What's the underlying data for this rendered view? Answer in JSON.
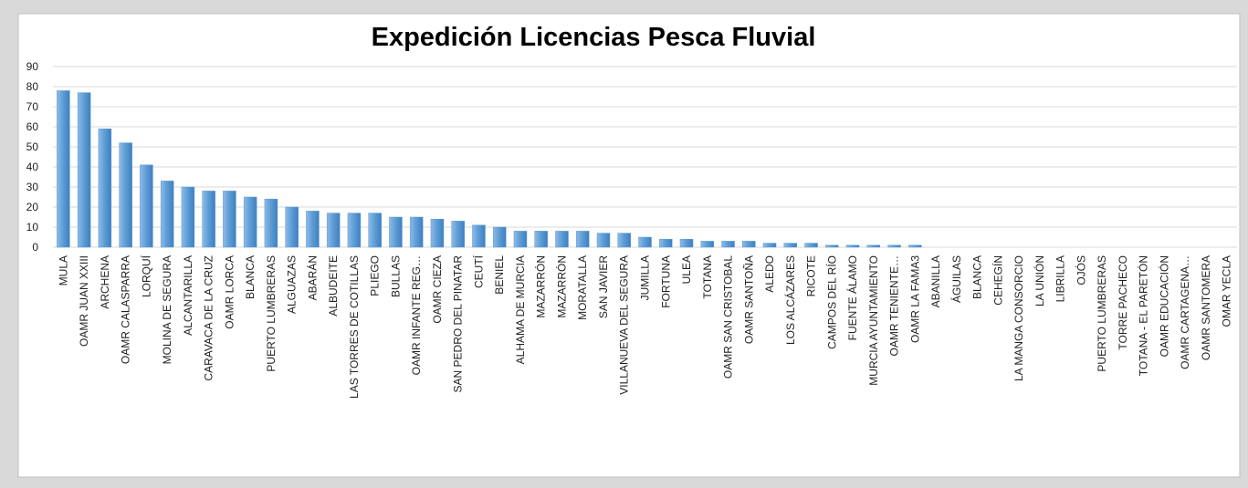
{
  "chart_data": {
    "type": "bar",
    "title": "Expedición Licencias Pesca Fluvial",
    "categories": [
      "MULA",
      "OAMR JUAN XXIII",
      "ARCHENA",
      "OAMR CALASPARRA",
      "LORQUÍ",
      "MOLINA DE SEGURA",
      "ALCANTARILLA",
      "CARAVACA DE LA CRUZ",
      "OAMR LORCA",
      "BLANCA",
      "PUERTO LUMBRERAS",
      "ALGUAZAS",
      "ABARÁN",
      "ALBUDEITE",
      "LAS TORRES DE COTILLAS",
      "PLIEGO",
      "BULLAS",
      "OAMR INFANTE REG…",
      "OAMR CIEZA",
      "SAN PEDRO DEL PINATAR",
      "CEUTÍ",
      "BENIEL",
      "ALHAMA DE MURCIA",
      "MAZARRÓN",
      "MAZARRÓN",
      "MORATALLA",
      "SAN JAVIER",
      "VILLANUEVA DEL SEGURA",
      "JUMILLA",
      "FORTUNA",
      "ULEA",
      "TOTANA",
      "OAMR SAN CRISTOBAL",
      "OAMR SANTOÑA",
      "ALEDO",
      "LOS ALCÁZARES",
      "RICOTE",
      "CAMPOS DEL RÍO",
      "FUENTE ÁLAMO",
      "MURCIA AYUNTAMIENTO",
      "OAMR TENIENTE…",
      "OAMR LA FAMA3",
      "ABANILLA",
      "ÁGUILAS",
      "BLANCA",
      "CEHEGÍN",
      "LA MANGA CONSORCIO",
      "LA UNIÓN",
      "LIBRILLA",
      "OJÓS",
      "PUERTO LUMBRERAS",
      "TORRE PACHECO",
      "TOTANA - EL PARETÓN",
      "OAMR EDUCACIÓN",
      "OAMR CARTAGENA…",
      "OAMR SANTOMERA",
      "OMAR YECLA"
    ],
    "values": [
      78,
      77,
      59,
      52,
      41,
      33,
      30,
      28,
      28,
      25,
      24,
      20,
      18,
      17,
      17,
      17,
      15,
      15,
      14,
      13,
      11,
      10,
      8,
      8,
      8,
      8,
      7,
      7,
      5,
      4,
      4,
      3,
      3,
      3,
      2,
      2,
      2,
      1,
      1,
      1,
      1,
      1,
      0,
      0,
      0,
      0,
      0,
      0,
      0,
      0,
      0,
      0,
      0,
      0,
      0,
      0,
      0
    ],
    "color": "#5b9bd5",
    "ylim": [
      0,
      90
    ],
    "yticks": [
      0,
      10,
      20,
      30,
      40,
      50,
      60,
      70,
      80,
      90
    ],
    "grid": true
  }
}
